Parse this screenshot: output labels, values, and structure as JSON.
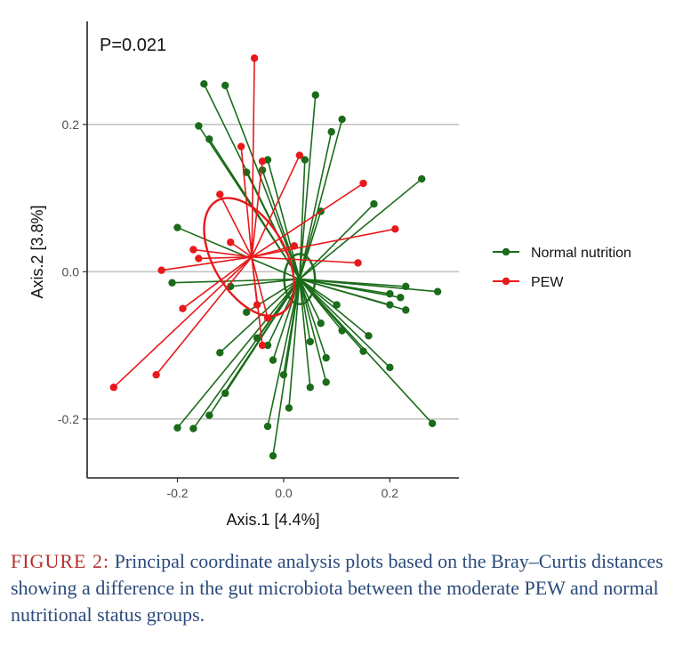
{
  "chart_data": {
    "type": "scatter",
    "annotation": "P=0.021",
    "xlabel": "Axis.1   [4.4%]",
    "ylabel": "Axis.2   [3.8%]",
    "xlim": [
      -0.37,
      0.33
    ],
    "ylim": [
      -0.28,
      0.34
    ],
    "x_ticks": [
      -0.2,
      0.0,
      0.2
    ],
    "x_tick_labels": [
      "-0.2",
      "0.0",
      "0.2"
    ],
    "y_ticks": [
      -0.2,
      0.0,
      0.2
    ],
    "y_tick_labels": [
      "-0.2",
      "0.0",
      "0.2"
    ],
    "grid": "horizontal",
    "legend_position": "right",
    "series": [
      {
        "name": "Normal nutrition",
        "color": "#1a6b1a",
        "centroid": [
          0.03,
          -0.01
        ],
        "ellipse": {
          "center": [
            0.03,
            -0.01
          ],
          "rx": 0.029,
          "ry": 0.034
        },
        "points": [
          [
            -0.15,
            0.255
          ],
          [
            -0.11,
            0.253
          ],
          [
            -0.16,
            0.198
          ],
          [
            -0.14,
            0.18
          ],
          [
            0.06,
            0.24
          ],
          [
            0.11,
            0.207
          ],
          [
            0.09,
            0.19
          ],
          [
            0.04,
            0.152
          ],
          [
            -0.03,
            0.152
          ],
          [
            -0.04,
            0.138
          ],
          [
            -0.07,
            0.135
          ],
          [
            -0.2,
            0.06
          ],
          [
            0.26,
            0.126
          ],
          [
            0.17,
            0.092
          ],
          [
            0.07,
            0.082
          ],
          [
            -0.21,
            -0.015
          ],
          [
            0.23,
            -0.02
          ],
          [
            0.29,
            -0.027
          ],
          [
            0.2,
            -0.03
          ],
          [
            0.22,
            -0.035
          ],
          [
            0.2,
            -0.045
          ],
          [
            0.23,
            -0.052
          ],
          [
            0.1,
            -0.045
          ],
          [
            0.07,
            -0.07
          ],
          [
            0.11,
            -0.08
          ],
          [
            0.16,
            -0.087
          ],
          [
            0.15,
            -0.108
          ],
          [
            0.2,
            -0.13
          ],
          [
            0.05,
            -0.095
          ],
          [
            0.08,
            -0.117
          ],
          [
            0.08,
            -0.15
          ],
          [
            0.05,
            -0.157
          ],
          [
            0.0,
            -0.14
          ],
          [
            -0.05,
            -0.09
          ],
          [
            -0.03,
            -0.1
          ],
          [
            -0.02,
            -0.12
          ],
          [
            -0.12,
            -0.11
          ],
          [
            -0.11,
            -0.165
          ],
          [
            -0.14,
            -0.195
          ],
          [
            -0.2,
            -0.212
          ],
          [
            -0.17,
            -0.213
          ],
          [
            0.28,
            -0.206
          ],
          [
            0.01,
            -0.185
          ],
          [
            -0.03,
            -0.21
          ],
          [
            -0.02,
            -0.25
          ],
          [
            -0.07,
            -0.055
          ],
          [
            -0.1,
            -0.02
          ]
        ]
      },
      {
        "name": "PEW",
        "color": "#e8191b",
        "centroid": [
          -0.06,
          0.02
        ],
        "ellipse": {
          "center": [
            -0.065,
            0.02
          ],
          "rx": 0.068,
          "ry": 0.088,
          "rotation": -30
        },
        "points": [
          [
            -0.055,
            0.29
          ],
          [
            -0.08,
            0.17
          ],
          [
            -0.12,
            0.105
          ],
          [
            -0.04,
            0.15
          ],
          [
            0.03,
            0.158
          ],
          [
            0.15,
            0.12
          ],
          [
            0.21,
            0.058
          ],
          [
            0.14,
            0.012
          ],
          [
            -0.23,
            0.002
          ],
          [
            -0.17,
            0.03
          ],
          [
            -0.16,
            0.018
          ],
          [
            -0.19,
            -0.05
          ],
          [
            -0.32,
            -0.157
          ],
          [
            -0.24,
            -0.14
          ],
          [
            -0.05,
            -0.045
          ],
          [
            -0.03,
            -0.063
          ],
          [
            -0.04,
            -0.1
          ],
          [
            -0.1,
            0.04
          ],
          [
            0.02,
            0.035
          ]
        ]
      }
    ]
  },
  "caption": {
    "label": "FIGURE 2:",
    "text": " Principal coordinate analysis plots based on the Bray–Curtis distances showing a difference in the gut microbiota between the moderate PEW and normal nutritional status groups."
  }
}
